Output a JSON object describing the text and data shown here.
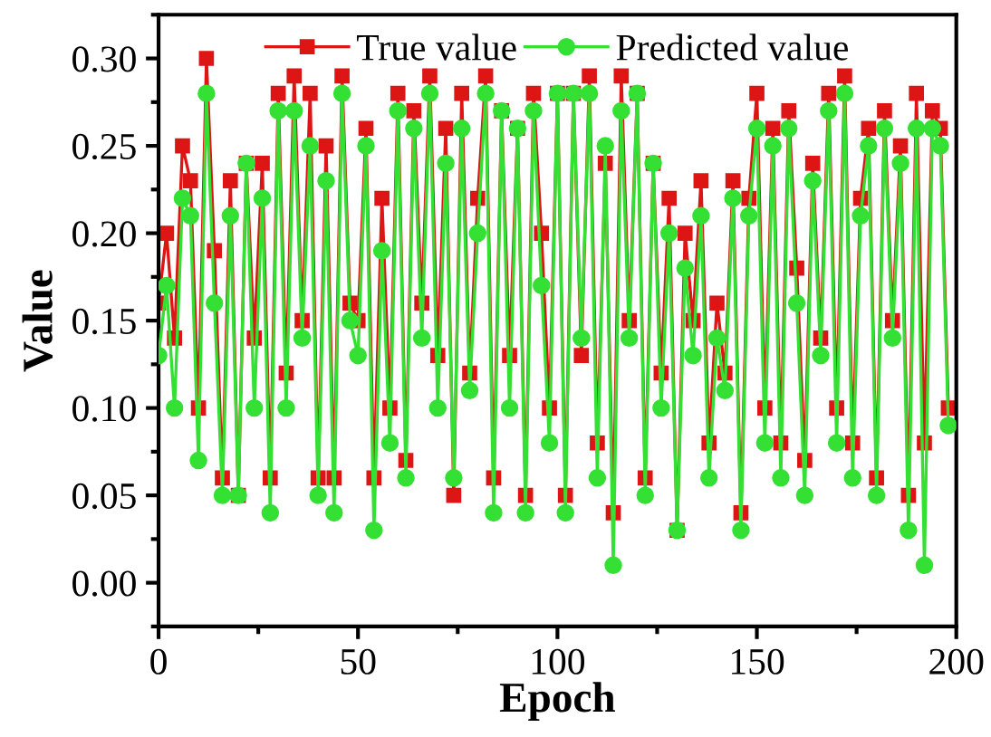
{
  "chart_data": {
    "type": "line",
    "xlabel": "Epoch",
    "ylabel": "Value",
    "x": [
      0,
      2,
      4,
      6,
      8,
      10,
      12,
      14,
      16,
      18,
      20,
      22,
      24,
      26,
      28,
      30,
      32,
      34,
      36,
      38,
      40,
      42,
      44,
      46,
      48,
      50,
      52,
      54,
      56,
      58,
      60,
      62,
      64,
      66,
      68,
      70,
      72,
      74,
      76,
      78,
      80,
      82,
      84,
      86,
      88,
      90,
      92,
      94,
      96,
      98,
      100,
      102,
      104,
      106,
      108,
      110,
      112,
      114,
      116,
      118,
      120,
      122,
      124,
      126,
      128,
      130,
      132,
      134,
      136,
      138,
      140,
      142,
      144,
      146,
      148,
      150,
      152,
      154,
      156,
      158,
      160,
      162,
      164,
      166,
      168,
      170,
      172,
      174,
      176,
      178,
      180,
      182,
      184,
      186,
      188,
      190,
      192,
      194,
      196,
      198
    ],
    "series": [
      {
        "name": "True value",
        "color": "#dd1515",
        "marker": "square",
        "values": [
          0.16,
          0.2,
          0.14,
          0.25,
          0.23,
          0.1,
          0.3,
          0.19,
          0.06,
          0.23,
          0.05,
          0.24,
          0.14,
          0.24,
          0.06,
          0.28,
          0.12,
          0.29,
          0.15,
          0.28,
          0.06,
          0.25,
          0.06,
          0.29,
          0.16,
          0.15,
          0.26,
          0.06,
          0.22,
          0.1,
          0.28,
          0.07,
          0.27,
          0.16,
          0.29,
          0.13,
          0.26,
          0.05,
          0.28,
          0.12,
          0.22,
          0.29,
          0.06,
          0.27,
          0.13,
          0.26,
          0.05,
          0.28,
          0.2,
          0.1,
          0.28,
          0.05,
          0.28,
          0.13,
          0.29,
          0.08,
          0.24,
          0.04,
          0.29,
          0.15,
          0.28,
          0.06,
          0.24,
          0.12,
          0.22,
          0.03,
          0.2,
          0.15,
          0.23,
          0.08,
          0.16,
          0.12,
          0.23,
          0.04,
          0.22,
          0.28,
          0.1,
          0.26,
          0.08,
          0.27,
          0.18,
          0.07,
          0.24,
          0.14,
          0.28,
          0.1,
          0.29,
          0.08,
          0.22,
          0.26,
          0.06,
          0.27,
          0.15,
          0.25,
          0.05,
          0.28,
          0.08,
          0.27,
          0.26,
          0.1
        ]
      },
      {
        "name": "Predicted value",
        "color": "#33e033",
        "marker": "circle",
        "values": [
          0.13,
          0.17,
          0.1,
          0.22,
          0.21,
          0.07,
          0.28,
          0.16,
          0.05,
          0.21,
          0.05,
          0.24,
          0.1,
          0.22,
          0.04,
          0.27,
          0.1,
          0.27,
          0.14,
          0.25,
          0.05,
          0.23,
          0.04,
          0.28,
          0.15,
          0.13,
          0.25,
          0.03,
          0.19,
          0.08,
          0.27,
          0.06,
          0.26,
          0.14,
          0.28,
          0.1,
          0.24,
          0.06,
          0.26,
          0.11,
          0.2,
          0.28,
          0.04,
          0.27,
          0.1,
          0.26,
          0.04,
          0.27,
          0.17,
          0.08,
          0.28,
          0.04,
          0.28,
          0.14,
          0.28,
          0.06,
          0.25,
          0.01,
          0.27,
          0.14,
          0.28,
          0.05,
          0.24,
          0.1,
          0.2,
          0.03,
          0.18,
          0.13,
          0.21,
          0.06,
          0.14,
          0.11,
          0.22,
          0.03,
          0.21,
          0.26,
          0.08,
          0.25,
          0.06,
          0.26,
          0.16,
          0.05,
          0.23,
          0.13,
          0.27,
          0.08,
          0.28,
          0.06,
          0.21,
          0.25,
          0.05,
          0.26,
          0.14,
          0.24,
          0.03,
          0.26,
          0.01,
          0.26,
          0.25,
          0.09
        ]
      }
    ],
    "xlim": [
      0,
      200
    ],
    "xticks": [
      0,
      50,
      100,
      150,
      200
    ],
    "ylim": [
      -0.025,
      0.325
    ],
    "yticks": [
      {
        "value": 0,
        "label": "0.00"
      },
      {
        "value": 0.05,
        "label": "0.05"
      },
      {
        "value": 0.1,
        "label": "0.10"
      },
      {
        "value": 0.15,
        "label": "0.15"
      },
      {
        "value": 0.2,
        "label": "0.20"
      },
      {
        "value": 0.25,
        "label": "0.25"
      },
      {
        "value": 0.3,
        "label": "0.30"
      }
    ],
    "grid": false,
    "legend": "top",
    "line_style": "solid"
  }
}
